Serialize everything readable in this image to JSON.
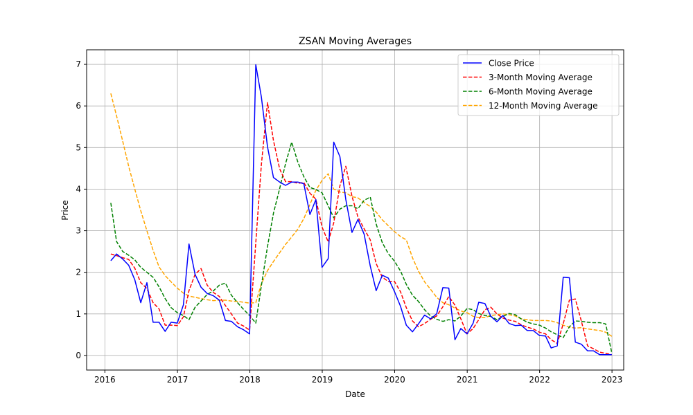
{
  "chart_data": {
    "type": "line",
    "title": "ZSAN Moving Averages",
    "xlabel": "Date",
    "ylabel": "Price",
    "xlim": [
      "2015-10-01",
      "2023-03-01"
    ],
    "ylim": [
      -0.35,
      7.35
    ],
    "x_ticks": [
      "2016",
      "2017",
      "2018",
      "2019",
      "2020",
      "2021",
      "2022",
      "2023"
    ],
    "y_ticks": [
      0,
      1,
      2,
      3,
      4,
      5,
      6,
      7
    ],
    "grid": true,
    "legend_position": "top-right",
    "x": [
      "2016-01-31",
      "2016-02-29",
      "2016-03-31",
      "2016-04-30",
      "2016-05-31",
      "2016-06-30",
      "2016-07-31",
      "2016-08-31",
      "2016-09-30",
      "2016-10-31",
      "2016-11-30",
      "2016-12-31",
      "2017-01-31",
      "2017-02-28",
      "2017-03-31",
      "2017-04-30",
      "2017-05-31",
      "2017-06-30",
      "2017-07-31",
      "2017-08-31",
      "2017-09-30",
      "2017-10-31",
      "2017-11-30",
      "2017-12-31",
      "2018-01-31",
      "2018-02-28",
      "2018-03-31",
      "2018-04-30",
      "2018-05-31",
      "2018-06-30",
      "2018-07-31",
      "2018-08-31",
      "2018-09-30",
      "2018-10-31",
      "2018-11-30",
      "2018-12-31",
      "2019-01-31",
      "2019-02-28",
      "2019-03-31",
      "2019-04-30",
      "2019-05-31",
      "2019-06-30",
      "2019-07-31",
      "2019-08-31",
      "2019-09-30",
      "2019-10-31",
      "2019-11-30",
      "2019-12-31",
      "2020-01-31",
      "2020-02-29",
      "2020-03-31",
      "2020-04-30",
      "2020-05-31",
      "2020-06-30",
      "2020-07-31",
      "2020-08-31",
      "2020-09-30",
      "2020-10-31",
      "2020-11-30",
      "2020-12-31",
      "2021-01-31",
      "2021-02-28",
      "2021-03-31",
      "2021-04-30",
      "2021-05-31",
      "2021-06-30",
      "2021-07-31",
      "2021-08-31",
      "2021-09-30",
      "2021-10-31",
      "2021-11-30",
      "2021-12-31",
      "2022-01-31",
      "2022-02-28",
      "2022-03-31",
      "2022-04-30",
      "2022-05-31",
      "2022-06-30",
      "2022-07-31",
      "2022-08-31",
      "2022-09-30",
      "2022-10-31",
      "2022-11-30",
      "2022-12-31"
    ],
    "series": [
      {
        "name": "Close Price",
        "color": "#0000ff",
        "dash": "solid",
        "values": [
          2.28,
          2.44,
          2.32,
          2.17,
          1.82,
          1.27,
          1.75,
          0.8,
          0.8,
          0.58,
          0.8,
          0.78,
          1.22,
          2.68,
          1.95,
          1.64,
          1.49,
          1.44,
          1.33,
          0.84,
          0.82,
          0.69,
          0.62,
          0.52,
          6.99,
          6.22,
          5.02,
          4.28,
          4.17,
          4.09,
          4.17,
          4.17,
          4.13,
          3.39,
          3.75,
          2.12,
          2.33,
          5.13,
          4.78,
          3.75,
          2.96,
          3.27,
          2.92,
          2.15,
          1.56,
          1.93,
          1.86,
          1.54,
          1.18,
          0.73,
          0.57,
          0.76,
          0.97,
          0.88,
          1.0,
          1.63,
          1.62,
          0.38,
          0.65,
          0.52,
          0.78,
          1.28,
          1.25,
          0.94,
          0.81,
          0.96,
          0.77,
          0.72,
          0.73,
          0.6,
          0.6,
          0.48,
          0.47,
          0.18,
          0.23,
          1.88,
          1.87,
          0.32,
          0.27,
          0.11,
          0.11,
          0.02,
          0.02,
          0.02
        ]
      },
      {
        "name": "3-Month Moving Average",
        "color": "#ff0000",
        "dash": "dashed",
        "values": [
          2.44,
          2.4,
          2.35,
          2.31,
          2.1,
          1.75,
          1.61,
          1.27,
          1.12,
          0.73,
          0.73,
          0.72,
          0.93,
          1.56,
          1.95,
          2.09,
          1.69,
          1.52,
          1.42,
          1.2,
          1.0,
          0.78,
          0.71,
          0.61,
          2.71,
          4.58,
          6.08,
          5.17,
          4.49,
          4.18,
          4.18,
          4.14,
          4.16,
          3.9,
          3.76,
          3.09,
          2.73,
          3.19,
          4.08,
          4.55,
          3.83,
          3.33,
          3.05,
          2.78,
          2.21,
          1.88,
          1.78,
          1.78,
          1.53,
          1.15,
          0.83,
          0.69,
          0.77,
          0.87,
          0.95,
          1.17,
          1.42,
          1.21,
          0.88,
          0.52,
          0.65,
          0.86,
          1.1,
          1.16,
          1.0,
          0.9,
          0.85,
          0.82,
          0.74,
          0.68,
          0.64,
          0.56,
          0.52,
          0.38,
          0.29,
          0.76,
          1.33,
          1.36,
          0.82,
          0.23,
          0.16,
          0.08,
          0.05,
          0.02
        ]
      },
      {
        "name": "6-Month Moving Average",
        "color": "#008000",
        "dash": "dashed",
        "values": [
          3.67,
          2.74,
          2.5,
          2.41,
          2.3,
          2.12,
          2.0,
          1.88,
          1.65,
          1.37,
          1.15,
          1.03,
          0.96,
          0.86,
          1.16,
          1.31,
          1.47,
          1.55,
          1.69,
          1.74,
          1.45,
          1.27,
          1.11,
          0.96,
          0.78,
          1.67,
          2.62,
          3.42,
          4.01,
          4.61,
          5.13,
          4.65,
          4.3,
          4.04,
          3.99,
          3.91,
          3.6,
          3.31,
          3.52,
          3.6,
          3.6,
          3.53,
          3.73,
          3.81,
          3.16,
          2.71,
          2.45,
          2.27,
          2.03,
          1.71,
          1.45,
          1.3,
          1.1,
          0.95,
          0.87,
          0.82,
          0.86,
          0.83,
          0.95,
          1.13,
          1.1,
          1.01,
          0.96,
          0.94,
          0.86,
          0.94,
          1.01,
          0.98,
          0.88,
          0.8,
          0.76,
          0.73,
          0.66,
          0.57,
          0.5,
          0.43,
          0.69,
          0.83,
          0.82,
          0.8,
          0.79,
          0.79,
          0.76,
          0.06
        ]
      },
      {
        "name": "12-Month Moving Average",
        "color": "#ffa500",
        "dash": "dashed",
        "values": [
          6.3,
          5.76,
          5.15,
          4.55,
          4.0,
          3.48,
          3.0,
          2.53,
          2.13,
          1.92,
          1.77,
          1.62,
          1.5,
          1.43,
          1.4,
          1.37,
          1.34,
          1.32,
          1.33,
          1.33,
          1.31,
          1.3,
          1.28,
          1.26,
          1.27,
          1.72,
          2.04,
          2.26,
          2.47,
          2.67,
          2.85,
          3.04,
          3.29,
          3.63,
          3.97,
          4.21,
          4.37,
          4.0,
          3.93,
          3.91,
          3.82,
          3.79,
          3.68,
          3.58,
          3.45,
          3.26,
          3.12,
          2.98,
          2.86,
          2.78,
          2.35,
          2.03,
          1.77,
          1.59,
          1.4,
          1.27,
          1.22,
          1.14,
          1.07,
          1.03,
          0.94,
          0.91,
          0.91,
          0.96,
          0.98,
          1.0,
          0.98,
          0.95,
          0.88,
          0.86,
          0.84,
          0.84,
          0.84,
          0.83,
          0.79,
          0.73,
          0.68,
          0.66,
          0.67,
          0.64,
          0.62,
          0.6,
          0.56,
          0.46
        ]
      }
    ]
  }
}
